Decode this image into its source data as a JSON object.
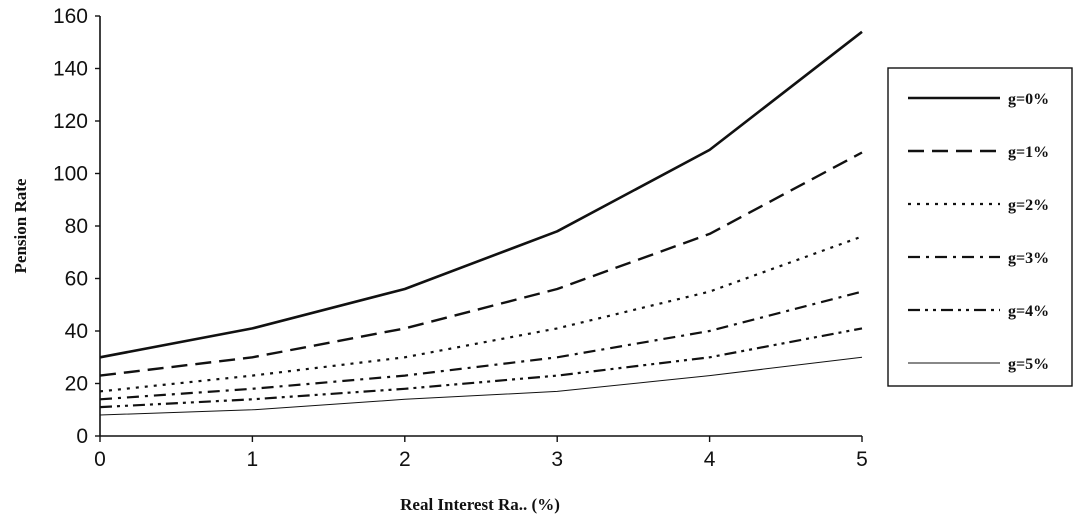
{
  "chart_data": {
    "type": "line",
    "title": "",
    "xlabel": "Real Interest Ra.. (%)",
    "ylabel": "Pension Rate",
    "x": [
      0,
      1,
      2,
      3,
      4,
      5
    ],
    "xlim": [
      0,
      5
    ],
    "ylim": [
      0,
      160
    ],
    "xticks": [
      "0",
      "1",
      "2",
      "3",
      "4",
      "5"
    ],
    "yticks": [
      "0",
      "20",
      "40",
      "60",
      "80",
      "100",
      "120",
      "140",
      "160"
    ],
    "grid": false,
    "legend_position": "right",
    "series": [
      {
        "name": "g=0%",
        "style": "solid",
        "values": [
          30,
          41,
          56,
          78,
          109,
          154
        ]
      },
      {
        "name": "g=1%",
        "style": "dashed",
        "values": [
          23,
          30,
          41,
          56,
          77,
          108
        ]
      },
      {
        "name": "g=2%",
        "style": "dotted",
        "values": [
          17,
          23,
          30,
          41,
          55,
          76
        ]
      },
      {
        "name": "g=3%",
        "style": "dash-dot",
        "values": [
          14,
          18,
          23,
          30,
          40,
          55
        ]
      },
      {
        "name": "g=4%",
        "style": "dash-dot-dot",
        "values": [
          11,
          14,
          18,
          23,
          30,
          41
        ]
      },
      {
        "name": "g=5%",
        "style": "thin",
        "values": [
          8,
          10,
          14,
          17,
          23,
          30
        ]
      }
    ]
  }
}
